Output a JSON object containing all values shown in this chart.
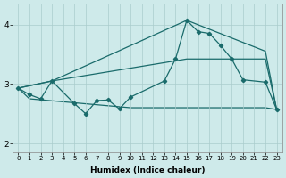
{
  "xlabel": "Humidex (Indice chaleur)",
  "xlim": [
    -0.5,
    23.5
  ],
  "ylim": [
    1.85,
    4.35
  ],
  "xticks": [
    0,
    1,
    2,
    3,
    4,
    5,
    6,
    7,
    8,
    9,
    10,
    11,
    12,
    13,
    14,
    15,
    16,
    17,
    18,
    19,
    20,
    21,
    22,
    23
  ],
  "yticks": [
    2,
    3,
    4
  ],
  "bg_color": "#ceeaea",
  "grid_color": "#aacccc",
  "line_color": "#1a6b6b",
  "line_width": 0.9,
  "marker_size": 2.2,
  "series_jagged": {
    "x": [
      0,
      1,
      2,
      3,
      5,
      6,
      7,
      8,
      9,
      10,
      13,
      14,
      15,
      16,
      17,
      18,
      19,
      20,
      22,
      23
    ],
    "y": [
      2.93,
      2.82,
      2.75,
      3.05,
      2.67,
      2.5,
      2.72,
      2.73,
      2.58,
      2.78,
      3.05,
      3.42,
      4.07,
      3.88,
      3.85,
      3.65,
      3.42,
      3.07,
      3.03,
      2.57
    ]
  },
  "series_upper": {
    "x": [
      0,
      3,
      15,
      22,
      23
    ],
    "y": [
      2.93,
      3.05,
      4.07,
      3.55,
      2.57
    ]
  },
  "series_lower": {
    "x": [
      0,
      3,
      15,
      22,
      23
    ],
    "y": [
      2.93,
      3.05,
      3.42,
      3.42,
      2.57
    ]
  },
  "series_flat": {
    "x": [
      0,
      1,
      10,
      22,
      23
    ],
    "y": [
      2.93,
      2.75,
      2.6,
      2.6,
      2.57
    ]
  }
}
